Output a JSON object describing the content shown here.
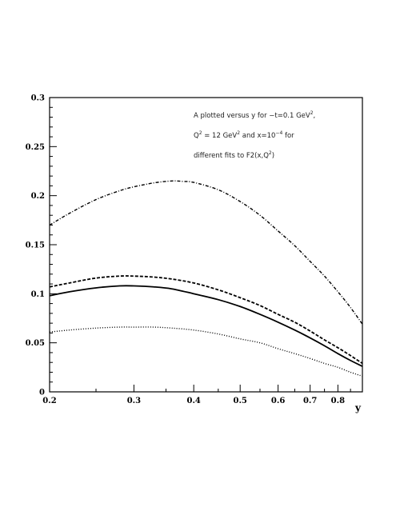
{
  "chart_data": {
    "type": "line",
    "title": "",
    "xlabel": "y",
    "ylabel": "",
    "xscale": "log",
    "xlim": [
      0.2,
      0.9
    ],
    "ylim": [
      0,
      0.3
    ],
    "grid": false,
    "x_ticks": [
      0.2,
      0.3,
      0.4,
      0.5,
      0.6,
      0.7,
      0.8
    ],
    "x_tick_labels": [
      "0.2",
      "0.3",
      "0.4",
      "0.5",
      "0.6",
      "0.7",
      "0.8"
    ],
    "y_ticks": [
      0,
      0.05,
      0.1,
      0.15,
      0.2,
      0.25,
      0.3
    ],
    "y_tick_labels": [
      "0",
      "0.05",
      "0.1",
      "0.15",
      "0.2",
      "0.25",
      "0.3"
    ],
    "annotation": {
      "line1": {
        "pre": "A plotted versus y for −t=0.1 GeV",
        "sup": "2",
        "post": ","
      },
      "line2": {
        "a": "Q",
        "a_sup": "2",
        "b": " = 12 GeV",
        "b_sup": "2",
        "c": " and x=10",
        "c_sup": "−4",
        "d": " for"
      },
      "line3": {
        "a": "different fits to F2(x,Q",
        "a_sup": "2",
        "b": ")"
      }
    },
    "series": [
      {
        "style": "dash-dot",
        "x": [
          0.2,
          0.22,
          0.25,
          0.28,
          0.3,
          0.33,
          0.36,
          0.38,
          0.4,
          0.45,
          0.5,
          0.55,
          0.6,
          0.65,
          0.7,
          0.75,
          0.8,
          0.85,
          0.9
        ],
        "y": [
          0.17,
          0.182,
          0.196,
          0.205,
          0.209,
          0.213,
          0.215,
          0.2145,
          0.2135,
          0.206,
          0.194,
          0.18,
          0.164,
          0.149,
          0.133,
          0.118,
          0.102,
          0.086,
          0.069
        ]
      },
      {
        "style": "dashed",
        "x": [
          0.2,
          0.22,
          0.25,
          0.28,
          0.3,
          0.33,
          0.36,
          0.4,
          0.45,
          0.5,
          0.55,
          0.6,
          0.65,
          0.7,
          0.75,
          0.8,
          0.85,
          0.9
        ],
        "y": [
          0.107,
          0.111,
          0.116,
          0.118,
          0.118,
          0.117,
          0.115,
          0.111,
          0.104,
          0.096,
          0.088,
          0.079,
          0.071,
          0.062,
          0.053,
          0.045,
          0.037,
          0.029
        ]
      },
      {
        "style": "solid",
        "x": [
          0.2,
          0.22,
          0.25,
          0.28,
          0.3,
          0.33,
          0.36,
          0.4,
          0.45,
          0.5,
          0.55,
          0.6,
          0.65,
          0.7,
          0.75,
          0.8,
          0.85,
          0.9
        ],
        "y": [
          0.098,
          0.102,
          0.106,
          0.108,
          0.108,
          0.107,
          0.105,
          0.1,
          0.094,
          0.087,
          0.079,
          0.071,
          0.063,
          0.055,
          0.047,
          0.039,
          0.032,
          0.026
        ]
      },
      {
        "style": "dotted",
        "x": [
          0.2,
          0.22,
          0.25,
          0.28,
          0.3,
          0.33,
          0.36,
          0.4,
          0.45,
          0.5,
          0.55,
          0.6,
          0.65,
          0.7,
          0.75,
          0.8,
          0.85,
          0.9
        ],
        "y": [
          0.061,
          0.063,
          0.065,
          0.066,
          0.066,
          0.066,
          0.065,
          0.063,
          0.059,
          0.054,
          0.05,
          0.044,
          0.039,
          0.034,
          0.029,
          0.025,
          0.02,
          0.016
        ]
      }
    ]
  }
}
